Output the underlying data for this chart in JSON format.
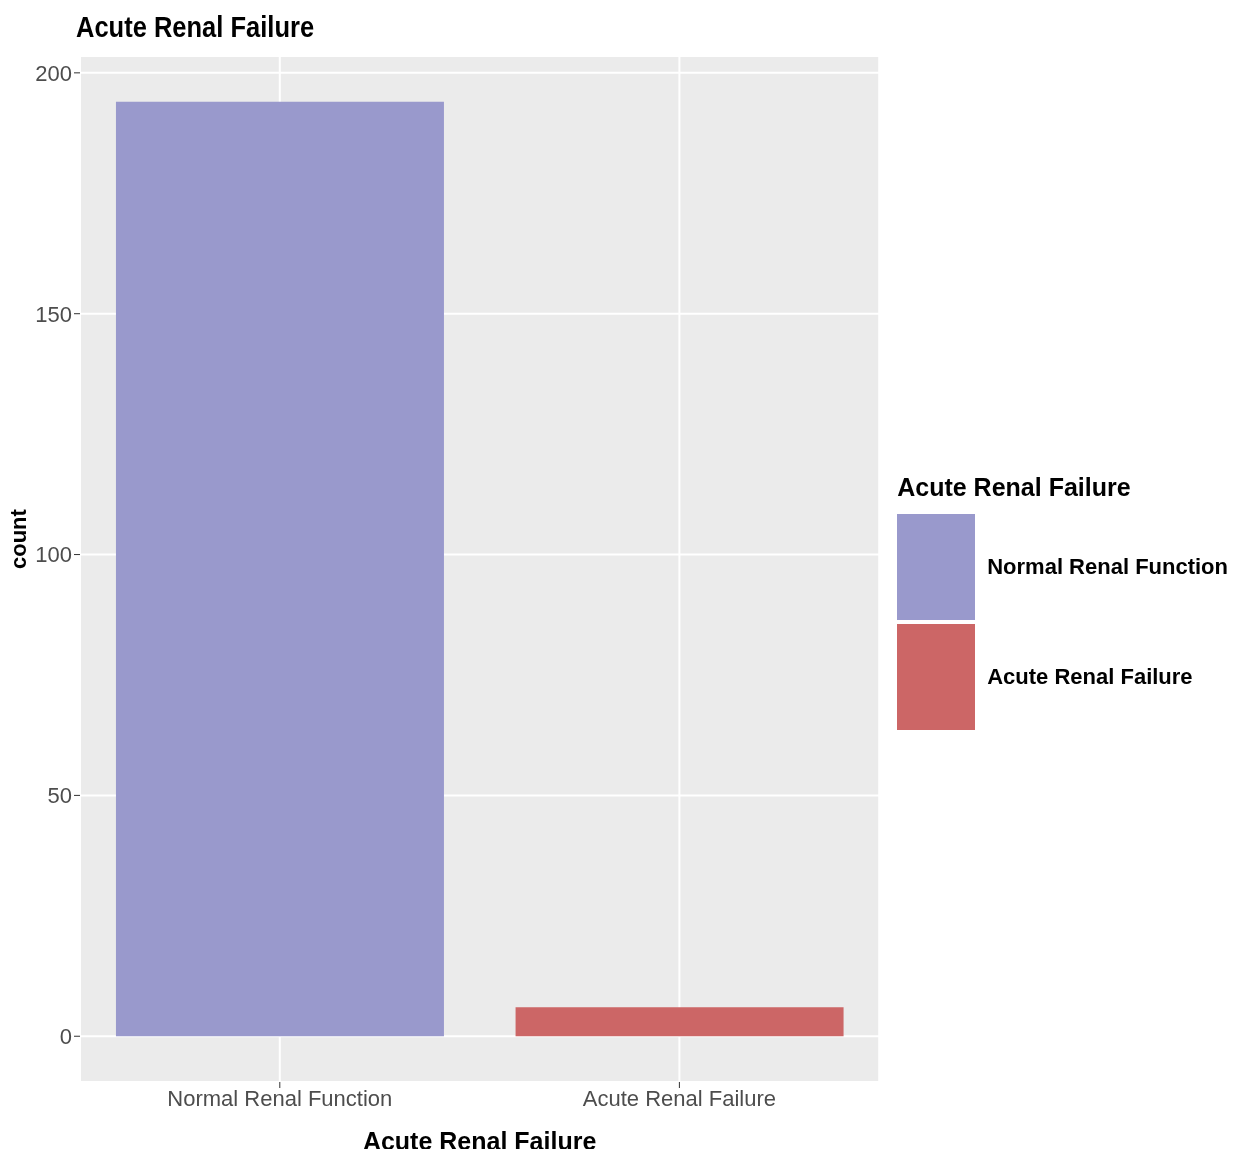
{
  "chart_data": {
    "type": "bar",
    "title": "Acute Renal Failure",
    "xlabel": "Acute Renal Failure",
    "ylabel": "count",
    "legend_title": "Acute Renal Failure",
    "categories": [
      "Normal Renal Function",
      "Acute Renal Failure"
    ],
    "series": [
      {
        "name": "Normal Renal Function",
        "color": "#9999cc",
        "values": [
          194,
          null
        ]
      },
      {
        "name": "Acute Renal Failure",
        "color": "#cc6666",
        "values": [
          null,
          6
        ]
      }
    ],
    "ylim": [
      -9.5,
      203.5
    ],
    "yticks": [
      0,
      50,
      100,
      150,
      200
    ],
    "grid": true,
    "legend": "right"
  }
}
